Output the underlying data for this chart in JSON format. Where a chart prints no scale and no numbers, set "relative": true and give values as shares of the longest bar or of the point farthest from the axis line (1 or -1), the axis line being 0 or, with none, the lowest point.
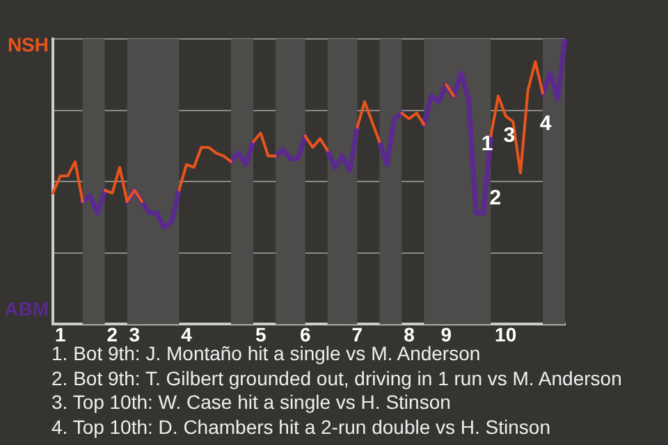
{
  "chart_data": {
    "type": "line",
    "relative": true,
    "grid": "y",
    "tick_labels": "x",
    "marker": "none",
    "line_style": "solid",
    "categories": [
      null,
      "1",
      null,
      null,
      null,
      null,
      null,
      null,
      "2",
      null,
      null,
      "3",
      null,
      null,
      null,
      null,
      null,
      null,
      "4",
      null,
      null,
      null,
      null,
      null,
      null,
      null,
      null,
      null,
      "5",
      null,
      null,
      null,
      null,
      null,
      "6",
      null,
      null,
      null,
      null,
      null,
      null,
      "7",
      null,
      null,
      null,
      null,
      null,
      null,
      "8",
      null,
      null,
      null,
      null,
      "9",
      null,
      null,
      null,
      null,
      null,
      null,
      null,
      "10",
      null,
      null,
      null,
      null,
      null,
      null,
      null,
      null
    ],
    "series": [
      {
        "name": "NSH",
        "color": "#e8541c",
        "values": [
          0.46,
          0.52,
          0.52,
          0.57,
          0.43,
          null,
          null,
          0.47,
          0.46,
          0.55,
          0.43,
          0.47,
          0.43,
          null,
          null,
          null,
          null,
          0.47,
          0.56,
          0.55,
          0.62,
          0.62,
          0.6,
          0.59,
          0.57,
          null,
          null,
          0.64,
          0.67,
          0.59,
          0.59,
          null,
          null,
          null,
          0.66,
          0.62,
          0.65,
          0.61,
          null,
          null,
          null,
          0.69,
          0.78,
          0.71,
          0.64,
          null,
          null,
          0.74,
          0.72,
          0.74,
          0.7,
          null,
          null,
          0.84,
          0.8,
          null,
          null,
          null,
          null,
          0.66,
          0.8,
          0.73,
          0.71,
          0.53,
          0.82,
          0.92,
          0.81,
          null,
          null,
          null
        ]
      },
      {
        "name": "ABM",
        "color": "#5a2a8e",
        "values": [
          null,
          null,
          null,
          null,
          0.43,
          0.45,
          0.39,
          0.47,
          null,
          null,
          0.43,
          0.47,
          0.43,
          0.39,
          0.39,
          0.34,
          0.36,
          0.47,
          null,
          null,
          null,
          null,
          null,
          null,
          0.57,
          0.6,
          0.56,
          0.64,
          null,
          null,
          0.59,
          0.61,
          0.58,
          0.58,
          0.66,
          null,
          null,
          0.61,
          0.55,
          0.59,
          0.54,
          0.69,
          null,
          null,
          0.64,
          0.56,
          0.72,
          0.74,
          null,
          null,
          0.7,
          0.8,
          0.78,
          0.84,
          0.8,
          0.88,
          0.79,
          0.39,
          0.39,
          0.66,
          null,
          null,
          null,
          null,
          null,
          null,
          0.81,
          0.88,
          0.79,
          1.0
        ]
      }
    ],
    "annotations": [
      "1",
      "2",
      "3",
      "4",
      "1. Bot 9th: J. Montaño hit a single vs M. Anderson",
      "2. Bot 9th: T. Gilbert grounded out, driving in 1 run vs M. Anderson",
      "3. Top 10th: W. Case hit a single vs H. Stinson",
      "4. Top 10th: D. Chambers hit a 2-run double vs H. Stinson"
    ]
  }
}
